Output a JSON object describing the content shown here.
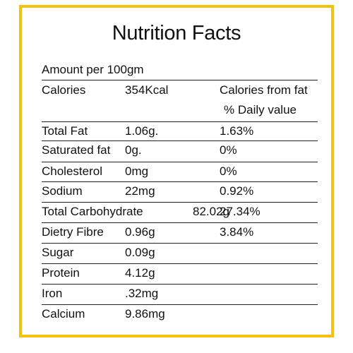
{
  "title": "Nutrition Facts",
  "amount": "Amount per 100gm",
  "header": {
    "name": "Calories",
    "value": "354Kcal",
    "col3_line1": "Calories from fat",
    "col3_line2": "% Daily value"
  },
  "rows": [
    {
      "name": "Total Fat",
      "value": "1.06g.",
      "daily": "1.63%"
    },
    {
      "name": "Saturated fat",
      "value": "0g.",
      "daily": "0%"
    },
    {
      "name": "Cholesterol",
      "value": "0mg",
      "daily": "0%"
    },
    {
      "name": "Sodium",
      "value": "22mg",
      "daily": "0.92%"
    },
    {
      "name": "Total Carbohydrate",
      "value": "82.02g",
      "daily": "27.34%"
    },
    {
      "name": "Dietry Fibre",
      "value": "0.96g",
      "daily": "3.84%"
    },
    {
      "name": "Sugar",
      "value": "0.09g",
      "daily": ""
    },
    {
      "name": "Protein",
      "value": "4.12g",
      "daily": ""
    },
    {
      "name": "Iron",
      "value": ".32mg",
      "daily": ""
    },
    {
      "name": "Calcium",
      "value": "9.86mg",
      "daily": ""
    }
  ],
  "colors": {
    "border": "#f5c10e",
    "text": "#111111"
  }
}
